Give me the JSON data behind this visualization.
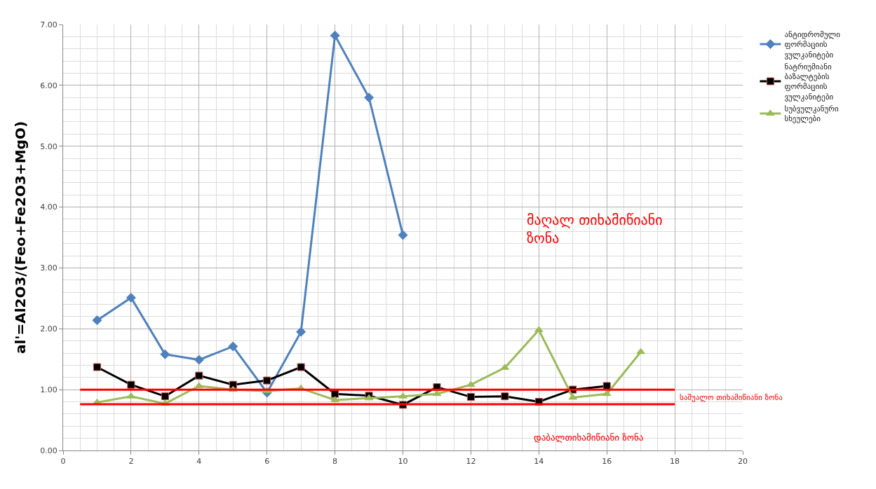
{
  "chart_data": {
    "type": "line",
    "ylabel": "al'=Al2O3/(Feo+Fe2O3+MgO)",
    "xlim": [
      0,
      20
    ],
    "xticks": [
      0,
      2,
      4,
      6,
      8,
      10,
      12,
      14,
      16,
      18,
      20
    ],
    "ylim": [
      0,
      7
    ],
    "yticks": [
      {
        "value": 0,
        "label": "0.00"
      },
      {
        "value": 1,
        "label": "1.00"
      },
      {
        "value": 2,
        "label": "2.00"
      },
      {
        "value": 3,
        "label": "3.00"
      },
      {
        "value": 4,
        "label": "4.00"
      },
      {
        "value": 5,
        "label": "5.00"
      },
      {
        "value": 6,
        "label": "6.00"
      },
      {
        "value": 7,
        "label": "7.00"
      }
    ],
    "grid": true,
    "legend": "right",
    "series": [
      {
        "name": "ანტიდრომული ფორმაციის ვულკანიტები",
        "color": "#4f81bd",
        "marker": "diamond",
        "x": [
          1,
          2,
          3,
          4,
          5,
          6,
          7,
          8,
          9,
          10
        ],
        "values": [
          2.14,
          2.51,
          1.58,
          1.49,
          1.71,
          0.95,
          1.95,
          6.82,
          5.8,
          3.54
        ]
      },
      {
        "name": "ნატრიუმიანი ბაზალტების ფორმაციის ვულკანიტები",
        "color": "#000000",
        "marker": "square",
        "x": [
          1,
          2,
          3,
          4,
          5,
          6,
          7,
          8,
          9,
          10,
          11,
          12,
          13,
          14,
          15,
          16
        ],
        "values": [
          1.37,
          1.08,
          0.89,
          1.23,
          1.08,
          1.15,
          1.37,
          0.93,
          0.9,
          0.75,
          1.04,
          0.88,
          0.89,
          0.8,
          1.0,
          1.06
        ]
      },
      {
        "name": "სუბვულკანური სხეულები",
        "color": "#9bbb59",
        "marker": "triangle",
        "x": [
          1,
          2,
          3,
          4,
          5,
          6,
          7,
          8,
          9,
          10,
          11,
          12,
          13,
          14,
          15,
          16,
          17
        ],
        "values": [
          0.79,
          0.89,
          0.77,
          1.06,
          1.0,
          0.98,
          1.02,
          0.83,
          0.86,
          0.89,
          0.93,
          1.08,
          1.36,
          1.98,
          0.87,
          0.93,
          1.62
        ]
      }
    ],
    "ref_lines": [
      {
        "axis": "y",
        "value": 1.0,
        "color": "#ff0000"
      },
      {
        "axis": "y",
        "value": 0.76,
        "color": "#ff0000"
      }
    ],
    "annotations": [
      "მაღალ თიხამიწიანი ზონა",
      "საშუალო თიხამიწიანი ზონა",
      "დაბალთიხამიწიანი ზონა"
    ]
  }
}
